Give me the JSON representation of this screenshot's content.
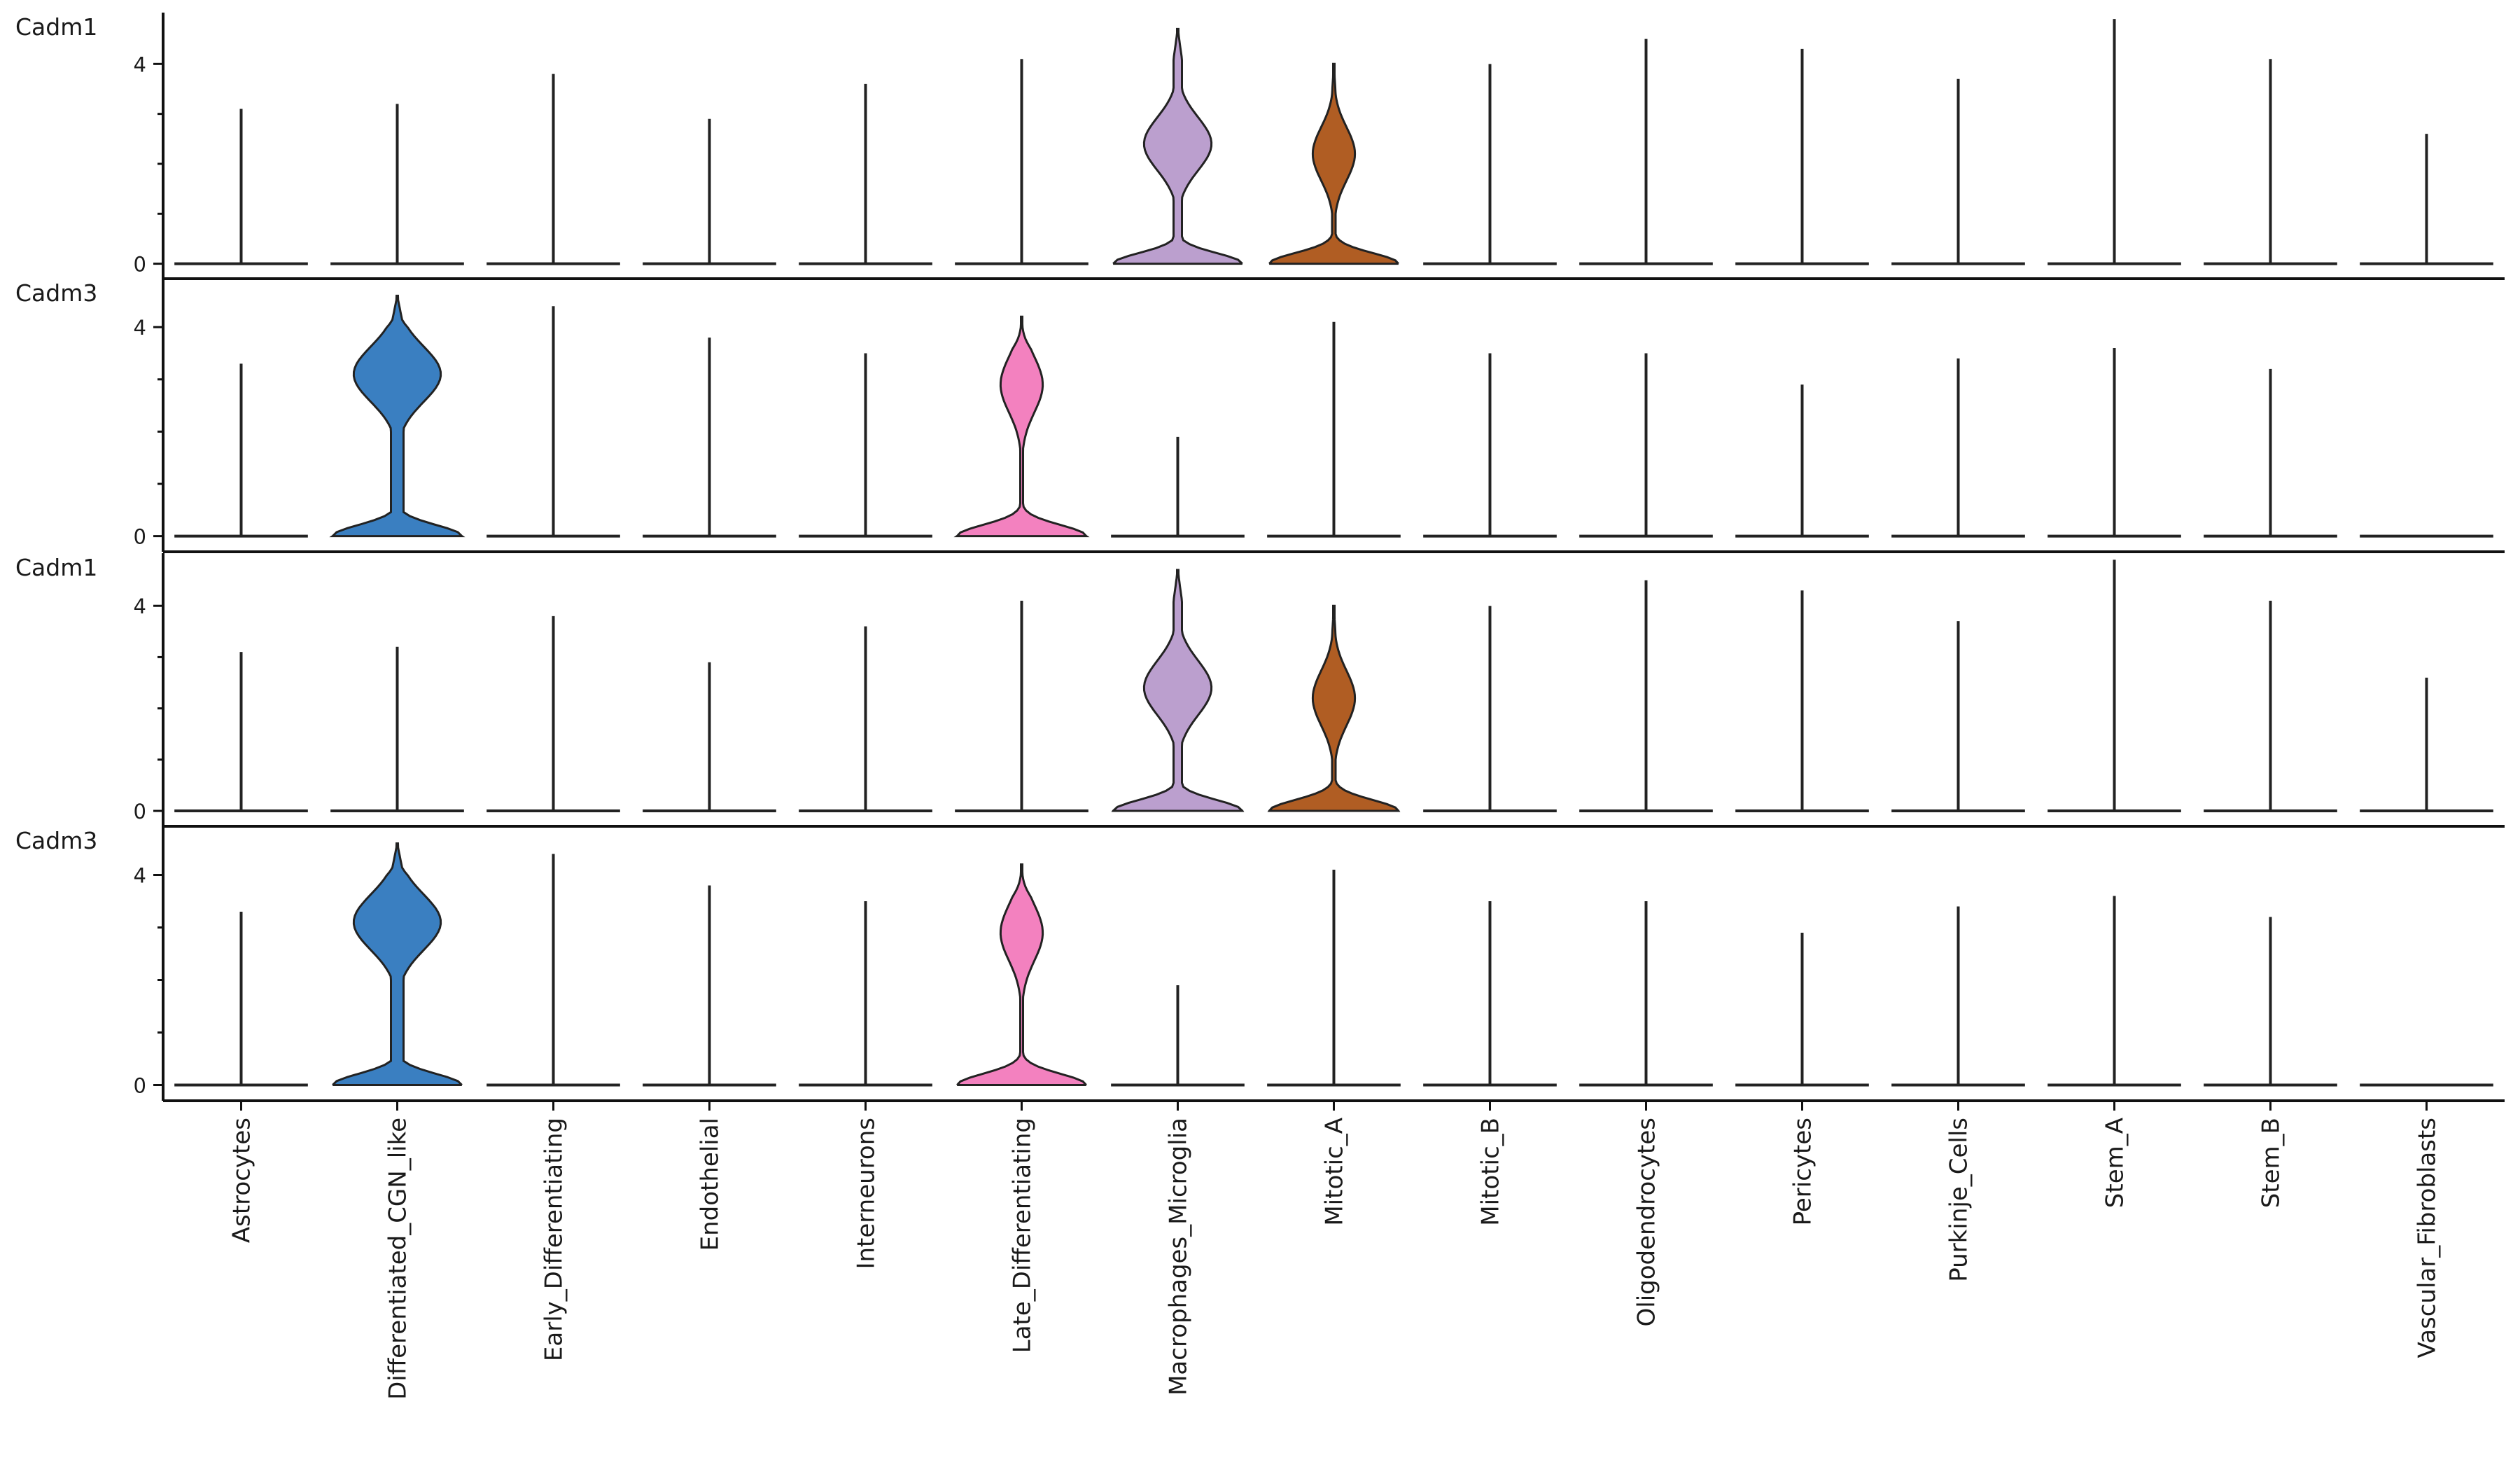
{
  "chart_data": {
    "type": "violin",
    "title": "",
    "xlabel": "",
    "ylabel": "",
    "categories": [
      "Astrocytes",
      "Differentiated_CGN_like",
      "Early_Differentiating",
      "Endothelial",
      "Interneurons",
      "Late_Differentiating",
      "Macrophages_Microglia",
      "Mitotic_A",
      "Mitotic_B",
      "Oligodendrocytes",
      "Pericytes",
      "Purkinje_Cells",
      "Stem_A",
      "Stem_B",
      "Vascular_Fibroblasts"
    ],
    "colors": {
      "Differentiated_CGN_like": "#3a7fc1",
      "Late_Differentiating": "#f381bf",
      "Macrophages_Microglia": "#bb9fce",
      "Mitotic_A": "#b05d23"
    },
    "panels": [
      {
        "gene": "Cadm1",
        "ylim": [
          -0.3,
          5.0
        ],
        "yticks": [
          0,
          4
        ],
        "max_values": [
          3.1,
          3.2,
          3.8,
          2.9,
          3.6,
          4.1,
          4.7,
          4.0,
          4.0,
          4.5,
          4.3,
          3.7,
          4.9,
          4.1,
          2.6
        ],
        "expressing": [
          {
            "category": "Macrophages_Microglia",
            "bulge_peak": 2.4,
            "bulge_width": 0.48,
            "waist": 1.2,
            "waist_width": 0.12,
            "base_width": 0.92
          },
          {
            "category": "Mitotic_A",
            "bulge_peak": 2.2,
            "bulge_width": 0.3,
            "waist": 1.1,
            "waist_width": 0.05,
            "base_width": 0.92
          }
        ]
      },
      {
        "gene": "Cadm3",
        "ylim": [
          -0.3,
          4.9
        ],
        "yticks": [
          0,
          4
        ],
        "max_values": [
          3.3,
          4.6,
          4.4,
          3.8,
          3.5,
          4.2,
          1.9,
          4.1,
          3.5,
          3.5,
          2.9,
          3.4,
          3.6,
          3.2,
          0
        ],
        "expressing": [
          {
            "category": "Differentiated_CGN_like",
            "bulge_peak": 3.1,
            "bulge_width": 0.62,
            "waist": 1.6,
            "waist_width": 0.18,
            "base_width": 0.92
          },
          {
            "category": "Late_Differentiating",
            "bulge_peak": 2.9,
            "bulge_width": 0.3,
            "waist": 1.1,
            "waist_width": 0.04,
            "base_width": 0.92
          }
        ]
      },
      {
        "gene": "Cadm1",
        "ylim": [
          -0.3,
          5.0
        ],
        "yticks": [
          0,
          4
        ],
        "max_values": [
          3.1,
          3.2,
          3.8,
          2.9,
          3.6,
          4.1,
          4.7,
          4.0,
          4.0,
          4.5,
          4.3,
          3.7,
          4.9,
          4.1,
          2.6
        ],
        "expressing": [
          {
            "category": "Macrophages_Microglia",
            "bulge_peak": 2.4,
            "bulge_width": 0.48,
            "waist": 1.2,
            "waist_width": 0.12,
            "base_width": 0.92
          },
          {
            "category": "Mitotic_A",
            "bulge_peak": 2.2,
            "bulge_width": 0.3,
            "waist": 1.1,
            "waist_width": 0.05,
            "base_width": 0.92
          }
        ]
      },
      {
        "gene": "Cadm3",
        "ylim": [
          -0.3,
          4.9
        ],
        "yticks": [
          0,
          4
        ],
        "max_values": [
          3.3,
          4.6,
          4.4,
          3.8,
          3.5,
          4.2,
          1.9,
          4.1,
          3.5,
          3.5,
          2.9,
          3.4,
          3.6,
          3.2,
          0
        ],
        "expressing": [
          {
            "category": "Differentiated_CGN_like",
            "bulge_peak": 3.1,
            "bulge_width": 0.62,
            "waist": 1.6,
            "waist_width": 0.18,
            "base_width": 0.92
          },
          {
            "category": "Late_Differentiating",
            "bulge_peak": 2.9,
            "bulge_width": 0.3,
            "waist": 1.1,
            "waist_width": 0.04,
            "base_width": 0.92
          }
        ]
      }
    ],
    "grid": false,
    "legend": "none"
  }
}
